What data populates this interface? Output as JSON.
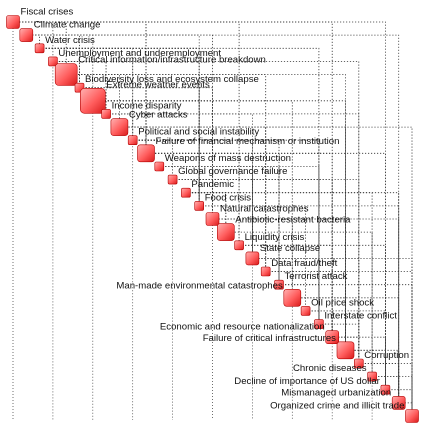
{
  "colors": {
    "node_fill_light": "#ffb3b3",
    "node_fill_mid": "#ff5c5c",
    "node_fill_dark": "#d81a1a",
    "node_stroke": "#b30000",
    "link_color": "#333333",
    "text_color": "#111111"
  },
  "nodes": [
    {
      "label": "Fiscal crises",
      "size": 2
    },
    {
      "label": "Climate change",
      "size": 2
    },
    {
      "label": "Water crisis",
      "size": 1
    },
    {
      "label": "Unemployment and underemployment",
      "size": 1
    },
    {
      "label": "Critical information/infrastructure breakdown",
      "size": 4
    },
    {
      "label": "Biodiversity loss and ecosystem collapse",
      "size": 1
    },
    {
      "label": "Extreme weather events",
      "size": 5
    },
    {
      "label": "Income disparity",
      "size": 1
    },
    {
      "label": "Cyber attacks",
      "size": 3
    },
    {
      "label": "Political and social instability",
      "size": 1
    },
    {
      "label": "Failure of financial mechanism or institution",
      "size": 3
    },
    {
      "label": "Weapons of mass destruction",
      "size": 1
    },
    {
      "label": "Global governance failure",
      "size": 1
    },
    {
      "label": "Pandemic",
      "size": 1
    },
    {
      "label": "Food crisis",
      "size": 1
    },
    {
      "label": "Natural catastrophes",
      "size": 2
    },
    {
      "label": "Antibiotic-resistant bacteria",
      "size": 3
    },
    {
      "label": "Liquidity crisis",
      "size": 1
    },
    {
      "label": "State collapse",
      "size": 2
    },
    {
      "label": "Data fraud/theft",
      "size": 1
    },
    {
      "label": "Terrorist attack",
      "size": 1
    },
    {
      "label": "Man-made environmental catastrophes",
      "size": 3
    },
    {
      "label": "Oil price shock",
      "size": 1
    },
    {
      "label": "Interstate conflict",
      "size": 1
    },
    {
      "label": "Economic and resource nationalization",
      "size": 2
    },
    {
      "label": "Failure of critical infrastructures",
      "size": 3
    },
    {
      "label": "Corruption",
      "size": 1
    },
    {
      "label": "Chronic diseases",
      "size": 1
    },
    {
      "label": "Decline of importance of US dollar",
      "size": 1
    },
    {
      "label": "Mismanaged urbanization",
      "size": 2
    },
    {
      "label": "Organized crime and illicit trade",
      "size": 2
    }
  ],
  "links": [
    [
      0,
      4
    ],
    [
      0,
      10
    ],
    [
      0,
      17
    ],
    [
      0,
      24
    ],
    [
      0,
      28
    ],
    [
      1,
      2
    ],
    [
      1,
      5
    ],
    [
      1,
      6
    ],
    [
      1,
      14
    ],
    [
      1,
      15
    ],
    [
      1,
      29
    ],
    [
      2,
      14
    ],
    [
      2,
      9
    ],
    [
      2,
      23
    ],
    [
      2,
      5
    ],
    [
      3,
      7
    ],
    [
      3,
      9
    ],
    [
      3,
      0
    ],
    [
      3,
      26
    ],
    [
      4,
      8
    ],
    [
      4,
      25
    ],
    [
      4,
      19
    ],
    [
      4,
      10
    ],
    [
      5,
      6
    ],
    [
      5,
      15
    ],
    [
      5,
      14
    ],
    [
      6,
      15
    ],
    [
      6,
      14
    ],
    [
      6,
      21
    ],
    [
      6,
      25
    ],
    [
      7,
      9
    ],
    [
      7,
      3
    ],
    [
      7,
      26
    ],
    [
      7,
      18
    ],
    [
      8,
      19
    ],
    [
      8,
      25
    ],
    [
      8,
      30
    ],
    [
      8,
      10
    ],
    [
      9,
      18
    ],
    [
      9,
      20
    ],
    [
      9,
      23
    ],
    [
      9,
      12
    ],
    [
      10,
      17
    ],
    [
      10,
      28
    ],
    [
      10,
      24
    ],
    [
      10,
      0
    ],
    [
      11,
      20
    ],
    [
      11,
      23
    ],
    [
      11,
      18
    ],
    [
      12,
      18
    ],
    [
      12,
      23
    ],
    [
      12,
      26
    ],
    [
      12,
      24
    ],
    [
      13,
      16
    ],
    [
      13,
      27
    ],
    [
      13,
      29
    ],
    [
      14,
      9
    ],
    [
      14,
      22
    ],
    [
      14,
      29
    ],
    [
      14,
      2
    ],
    [
      15,
      21
    ],
    [
      15,
      25
    ],
    [
      15,
      29
    ],
    [
      16,
      27
    ],
    [
      16,
      13
    ],
    [
      17,
      28
    ],
    [
      17,
      24
    ],
    [
      18,
      30
    ],
    [
      18,
      26
    ],
    [
      18,
      20
    ],
    [
      18,
      23
    ],
    [
      19,
      30
    ],
    [
      19,
      25
    ],
    [
      20,
      30
    ],
    [
      20,
      23
    ],
    [
      21,
      25
    ],
    [
      21,
      29
    ],
    [
      22,
      23
    ],
    [
      22,
      24
    ],
    [
      22,
      28
    ],
    [
      23,
      24
    ],
    [
      23,
      26
    ],
    [
      24,
      26
    ],
    [
      24,
      28
    ],
    [
      25,
      29
    ],
    [
      25,
      28
    ],
    [
      26,
      30
    ],
    [
      26,
      29
    ],
    [
      27,
      29
    ],
    [
      27,
      30
    ],
    [
      28,
      30
    ],
    [
      29,
      30
    ]
  ]
}
